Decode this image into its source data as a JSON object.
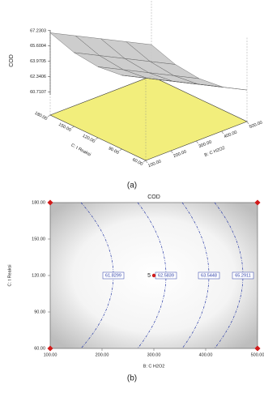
{
  "chart_data": [
    {
      "type": "surface",
      "caption": "(a)",
      "zlabel": "COD",
      "xlabel": "B: C H2O2",
      "ylabel": "C: t Reaksi",
      "xlim": [
        100,
        500
      ],
      "ylim": [
        60,
        180
      ],
      "zlim": [
        60.4,
        67.3
      ],
      "x": [
        100,
        200,
        300,
        400,
        500
      ],
      "y": [
        60,
        90,
        120,
        150,
        180
      ],
      "z": [
        [
          67.0,
          66.1,
          65.8,
          66.1,
          67.0
        ],
        [
          65.65,
          64.75,
          64.45,
          64.75,
          65.65
        ],
        [
          64.3,
          63.4,
          63.1,
          63.4,
          64.3
        ],
        [
          62.95,
          62.05,
          61.75,
          62.05,
          62.95
        ],
        [
          61.6,
          60.7,
          60.4,
          60.7,
          61.6
        ]
      ],
      "xticks": [
        {
          "value": 100,
          "label": "100.00"
        },
        {
          "value": 200,
          "label": "200.00"
        },
        {
          "value": 300,
          "label": "300.00"
        },
        {
          "value": 400,
          "label": "400.00"
        },
        {
          "value": 500,
          "label": "500.00"
        }
      ],
      "yticks": [
        {
          "value": 60,
          "label": "60.00"
        },
        {
          "value": 90,
          "label": "90.00"
        },
        {
          "value": 120,
          "label": "120.00"
        },
        {
          "value": 150,
          "label": "150.00"
        },
        {
          "value": 180,
          "label": "180.00"
        }
      ],
      "zticks": [
        60.7107,
        62.3406,
        63.9705,
        65.6004,
        67.2303
      ],
      "surface_color": "#c8c8c8",
      "base_color": "#f2ee7c"
    },
    {
      "type": "contour",
      "caption": "(b)",
      "title": "COD",
      "xlabel": "B: C H2O2",
      "ylabel": "C: t Reaksi",
      "xlim": [
        100,
        500
      ],
      "ylim": [
        60,
        180
      ],
      "xticks": [
        {
          "value": 100,
          "label": "100.00"
        },
        {
          "value": 200,
          "label": "200.00"
        },
        {
          "value": 300,
          "label": "300.00"
        },
        {
          "value": 400,
          "label": "400.00"
        },
        {
          "value": 500,
          "label": "500.00"
        }
      ],
      "yticks": [
        {
          "value": 60,
          "label": "60.00"
        },
        {
          "value": 90,
          "label": "90.00"
        },
        {
          "value": 120,
          "label": "120.00"
        },
        {
          "value": 150,
          "label": "150.00"
        },
        {
          "value": 180,
          "label": "180.00"
        }
      ],
      "levels": [
        61.8299,
        62.5839,
        63.5448,
        65.2911
      ],
      "level_color": "#2c3ea8",
      "corner_points": {
        "x": [
          100,
          100,
          500,
          500
        ],
        "y": [
          60,
          180,
          60,
          180
        ]
      },
      "center_point": {
        "x": 300,
        "y": 120,
        "label": "5"
      },
      "point_color": "#d11a1a"
    }
  ]
}
